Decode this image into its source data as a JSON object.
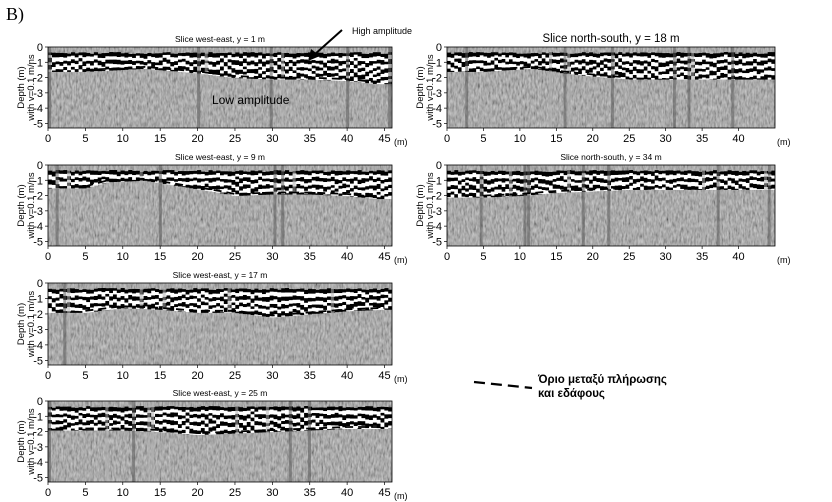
{
  "figure_label": "B)",
  "annotations": {
    "high_amplitude": "High amplitude",
    "low_amplitude": "Low amplitude"
  },
  "legend": {
    "line1": "Όριο μεταξύ πλήρωσης",
    "line2": "και εδάφους"
  },
  "colors": {
    "boundary": "#000000",
    "radargram_base": "#8a8a8a",
    "reflector_dark": "#000000",
    "reflector_light": "#ffffff"
  },
  "chart_data": [
    {
      "type": "line",
      "title": "Slice west-east, y = 1 m",
      "ylabel_1": "Depth (m)",
      "ylabel_2": "with v=0.1 m/ns",
      "x_unit": "(m)",
      "xlim": [
        0,
        46
      ],
      "ylim": [
        0,
        -5.3
      ],
      "x_ticks": [
        0,
        5,
        10,
        15,
        20,
        25,
        30,
        35,
        40,
        45
      ],
      "y_ticks": [
        0,
        -1,
        -2,
        -3,
        -4,
        -5
      ],
      "series": [
        {
          "x": [
            5,
            13,
            20,
            25,
            30,
            35,
            40,
            44
          ],
          "y": [
            -1.5,
            -1.3,
            -1.6,
            -1.9,
            -2.0,
            -2.0,
            -2.1,
            -2.3
          ]
        }
      ]
    },
    {
      "type": "line",
      "title": "Slice north-south, y = 18 m",
      "ylabel_1": "Depth (m)",
      "ylabel_2": "with v=0.1 m/ns",
      "x_unit": "(m)",
      "xlim": [
        0,
        45
      ],
      "ylim": [
        0,
        -5.3
      ],
      "x_ticks": [
        0,
        5,
        10,
        15,
        20,
        25,
        30,
        35,
        40
      ],
      "y_ticks": [
        0,
        -1,
        -2,
        -3,
        -4,
        -5
      ],
      "series": [
        {
          "x": [
            5,
            8,
            12,
            16,
            20,
            25
          ],
          "y": [
            -1.5,
            -1.4,
            -1.3,
            -1.6,
            -1.8,
            -2.0
          ]
        }
      ]
    },
    {
      "type": "line",
      "title": "Slice west-east, y = 9 m",
      "ylabel_1": "Depth (m)",
      "ylabel_2": "with v=0.1 m/ns",
      "x_unit": "(m)",
      "xlim": [
        0,
        46
      ],
      "ylim": [
        0,
        -5.3
      ],
      "x_ticks": [
        0,
        5,
        10,
        15,
        20,
        25,
        30,
        35,
        40,
        45
      ],
      "y_ticks": [
        0,
        -1,
        -2,
        -3,
        -4,
        -5
      ],
      "series": [
        {
          "x": [
            5,
            8,
            13,
            18,
            23,
            25,
            30,
            35,
            40,
            44
          ],
          "y": [
            -1.4,
            -1.0,
            -0.9,
            -1.3,
            -1.7,
            -1.9,
            -1.8,
            -1.8,
            -1.9,
            -2.1
          ]
        }
      ]
    },
    {
      "type": "line",
      "title": "Slice north-south, y = 34 m",
      "ylabel_1": "Depth (m)",
      "ylabel_2": "with v=0.1 m/ns",
      "x_unit": "(m)",
      "xlim": [
        0,
        45
      ],
      "ylim": [
        0,
        -5.3
      ],
      "x_ticks": [
        0,
        5,
        10,
        15,
        20,
        25,
        30,
        35,
        40
      ],
      "y_ticks": [
        0,
        -1,
        -2,
        -3,
        -4,
        -5
      ],
      "series": [
        {
          "x": [
            5,
            10,
            15,
            20,
            25
          ],
          "y": [
            -2.0,
            -1.9,
            -1.7,
            -1.6,
            -1.5
          ]
        }
      ]
    },
    {
      "type": "line",
      "title": "Slice west-east, y = 17 m",
      "ylabel_1": "Depth (m)",
      "ylabel_2": "with v=0.1 m/ns",
      "x_unit": "(m)",
      "xlim": [
        0,
        46
      ],
      "ylim": [
        0,
        -5.3
      ],
      "x_ticks": [
        0,
        5,
        10,
        15,
        20,
        25,
        30,
        35,
        40,
        45
      ],
      "y_ticks": [
        0,
        -1,
        -2,
        -3,
        -4,
        -5
      ],
      "series": [
        {
          "x": [
            5,
            10,
            15,
            20,
            25,
            30,
            35,
            40,
            45
          ],
          "y": [
            -1.8,
            -1.5,
            -1.6,
            -1.8,
            -1.8,
            -2.1,
            -1.9,
            -1.7,
            -1.6
          ]
        }
      ]
    },
    {
      "type": "line",
      "title": "Slice west-east, y = 25 m",
      "ylabel_1": "Depth (m)",
      "ylabel_2": "with v=0.1 m/ns",
      "x_unit": "(m)",
      "xlim": [
        0,
        46
      ],
      "ylim": [
        0,
        -5.3
      ],
      "x_ticks": [
        0,
        5,
        10,
        15,
        20,
        25,
        30,
        35,
        40,
        45
      ],
      "y_ticks": [
        0,
        -1,
        -2,
        -3,
        -4,
        -5
      ],
      "series": [
        {
          "x": [
            5,
            10,
            15,
            20,
            25,
            30,
            35,
            40,
            44
          ],
          "y": [
            -1.8,
            -1.8,
            -1.9,
            -2.1,
            -2.0,
            -1.9,
            -1.8,
            -1.7,
            -1.7
          ]
        }
      ]
    }
  ]
}
